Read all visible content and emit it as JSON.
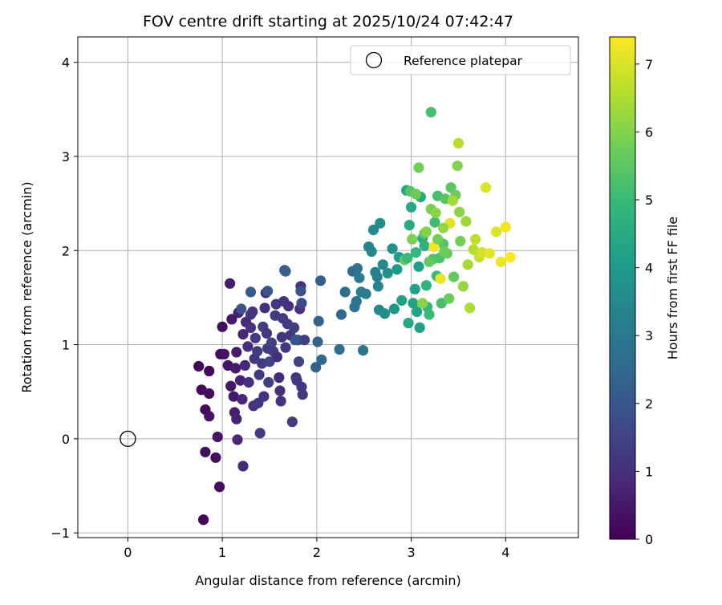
{
  "chart_data": {
    "type": "scatter",
    "title": "FOV centre drift starting at 2025/10/24 07:42:47",
    "xlabel": "Angular distance from reference (arcmin)",
    "ylabel": "Rotation from reference (arcmin)",
    "xlim": [
      -0.53,
      4.77
    ],
    "ylim": [
      -1.05,
      4.27
    ],
    "xticks": [
      "0",
      "1",
      "2",
      "3",
      "4"
    ],
    "xtick_values": [
      0,
      1,
      2,
      3,
      4
    ],
    "yticks": [
      "−1",
      "0",
      "1",
      "2",
      "3",
      "4"
    ],
    "ytick_values": [
      -1,
      0,
      1,
      2,
      3,
      4
    ],
    "grid": true,
    "legend": {
      "placement": "top-right",
      "entries": [
        {
          "label": "Reference platepar",
          "marker": "open-circle"
        }
      ]
    },
    "reference_point": {
      "x": 0,
      "y": 0
    },
    "colorbar": {
      "label": "Hours from first FF file",
      "colormap": "viridis",
      "range": [
        0,
        7.4
      ],
      "ticks": [
        "0",
        "1",
        "2",
        "3",
        "4",
        "5",
        "6",
        "7"
      ],
      "tick_values": [
        0,
        1,
        2,
        3,
        4,
        5,
        6,
        7
      ]
    },
    "points": [
      [
        0.75,
        0.77,
        0.1
      ],
      [
        0.78,
        0.52,
        0.15
      ],
      [
        0.82,
        0.31,
        0.2
      ],
      [
        0.82,
        -0.14,
        0.25
      ],
      [
        0.8,
        -0.86,
        0.1
      ],
      [
        0.86,
        0.72,
        0.2
      ],
      [
        0.86,
        0.48,
        0.3
      ],
      [
        0.86,
        0.24,
        0.35
      ],
      [
        0.93,
        -0.2,
        0.3
      ],
      [
        0.95,
        0.02,
        0.4
      ],
      [
        0.97,
        -0.51,
        0.3
      ],
      [
        0.98,
        0.9,
        0.25
      ],
      [
        1.0,
        1.19,
        0.3
      ],
      [
        1.02,
        0.9,
        0.35
      ],
      [
        1.06,
        0.78,
        0.4
      ],
      [
        1.09,
        0.56,
        0.45
      ],
      [
        1.1,
        1.27,
        0.5
      ],
      [
        1.08,
        1.65,
        0.6
      ],
      [
        1.12,
        0.45,
        0.5
      ],
      [
        1.13,
        0.28,
        0.6
      ],
      [
        1.15,
        0.21,
        0.7
      ],
      [
        1.16,
        -0.01,
        0.8
      ],
      [
        1.14,
        0.75,
        0.5
      ],
      [
        1.15,
        0.92,
        0.6
      ],
      [
        1.17,
        1.34,
        0.65
      ],
      [
        1.19,
        0.62,
        0.7
      ],
      [
        1.21,
        0.42,
        0.75
      ],
      [
        1.22,
        1.11,
        0.8
      ],
      [
        1.22,
        -0.29,
        0.9
      ],
      [
        1.24,
        0.78,
        0.85
      ],
      [
        1.25,
        1.24,
        0.9
      ],
      [
        1.27,
        0.98,
        0.95
      ],
      [
        1.28,
        0.6,
        1.0
      ],
      [
        1.3,
        1.18,
        1.05
      ],
      [
        1.3,
        1.32,
        1.1
      ],
      [
        1.32,
        1.35,
        1.15
      ],
      [
        1.33,
        0.35,
        1.0
      ],
      [
        1.34,
        0.85,
        1.2
      ],
      [
        1.35,
        1.07,
        1.25
      ],
      [
        1.37,
        0.93,
        1.3
      ],
      [
        1.38,
        0.38,
        1.2
      ],
      [
        1.39,
        0.68,
        1.25
      ],
      [
        1.4,
        0.06,
        1.3
      ],
      [
        1.42,
        0.8,
        1.35
      ],
      [
        1.43,
        1.19,
        1.4
      ],
      [
        1.44,
        0.45,
        1.1
      ],
      [
        1.45,
        1.39,
        1.0
      ],
      [
        1.46,
        1.55,
        0.9
      ],
      [
        1.47,
        1.12,
        1.2
      ],
      [
        1.48,
        0.96,
        1.3
      ],
      [
        1.49,
        0.6,
        1.4
      ],
      [
        1.5,
        0.82,
        1.5
      ],
      [
        1.52,
        1.02,
        1.45
      ],
      [
        1.54,
        0.93,
        1.35
      ],
      [
        1.56,
        1.31,
        1.3
      ],
      [
        1.57,
        1.43,
        1.2
      ],
      [
        1.58,
        0.87,
        1.0
      ],
      [
        1.6,
        0.65,
        0.9
      ],
      [
        1.61,
        0.51,
        1.0
      ],
      [
        1.62,
        0.4,
        1.1
      ],
      [
        1.63,
        1.08,
        1.2
      ],
      [
        1.64,
        1.28,
        1.3
      ],
      [
        1.65,
        1.46,
        1.1
      ],
      [
        1.66,
        1.79,
        1.5
      ],
      [
        1.67,
        0.97,
        1.2
      ],
      [
        1.69,
        1.22,
        1.3
      ],
      [
        1.7,
        1.41,
        1.0
      ],
      [
        1.72,
        1.1,
        1.2
      ],
      [
        1.74,
        0.18,
        1.3
      ],
      [
        1.76,
        1.18,
        1.4
      ],
      [
        1.78,
        0.65,
        1.1
      ],
      [
        1.79,
        0.62,
        1.2
      ],
      [
        1.8,
        1.05,
        1.3
      ],
      [
        1.81,
        0.82,
        1.5
      ],
      [
        1.82,
        1.38,
        1.1
      ],
      [
        1.83,
        1.62,
        1.0
      ],
      [
        1.84,
        0.55,
        1.2
      ],
      [
        1.85,
        0.47,
        1.3
      ],
      [
        1.87,
        1.05,
        1.4
      ],
      [
        1.48,
        1.57,
        2.0
      ],
      [
        1.3,
        1.56,
        2.1
      ],
      [
        1.2,
        1.38,
        1.9
      ],
      [
        1.67,
        1.78,
        2.3
      ],
      [
        1.77,
        1.05,
        2.0
      ],
      [
        1.83,
        1.57,
        1.9
      ],
      [
        1.84,
        1.44,
        1.7
      ],
      [
        1.99,
        0.76,
        2.3
      ],
      [
        2.01,
        1.03,
        2.4
      ],
      [
        2.02,
        1.25,
        2.3
      ],
      [
        2.04,
        1.68,
        2.2
      ],
      [
        2.05,
        0.84,
        2.5
      ],
      [
        2.24,
        0.95,
        2.6
      ],
      [
        2.26,
        1.32,
        2.5
      ],
      [
        2.3,
        1.56,
        2.7
      ],
      [
        2.38,
        1.78,
        2.6
      ],
      [
        2.4,
        1.4,
        2.8
      ],
      [
        2.42,
        1.46,
        2.9
      ],
      [
        2.43,
        1.81,
        2.8
      ],
      [
        2.45,
        1.71,
        3.0
      ],
      [
        2.47,
        1.56,
        3.1
      ],
      [
        2.49,
        0.94,
        2.9
      ],
      [
        2.52,
        1.54,
        3.2
      ],
      [
        2.55,
        2.04,
        3.3
      ],
      [
        2.58,
        1.99,
        3.4
      ],
      [
        2.6,
        2.22,
        3.5
      ],
      [
        2.62,
        1.77,
        3.3
      ],
      [
        2.64,
        1.72,
        3.2
      ],
      [
        2.65,
        1.62,
        3.4
      ],
      [
        2.66,
        1.37,
        3.5
      ],
      [
        2.67,
        2.29,
        3.6
      ],
      [
        2.7,
        1.85,
        3.5
      ],
      [
        2.72,
        1.33,
        3.6
      ],
      [
        2.75,
        1.76,
        3.7
      ],
      [
        2.8,
        2.02,
        3.8
      ],
      [
        2.82,
        1.38,
        3.9
      ],
      [
        2.85,
        1.8,
        4.0
      ],
      [
        2.87,
        1.93,
        4.1
      ],
      [
        2.9,
        1.47,
        4.2
      ],
      [
        2.95,
        2.64,
        4.3
      ],
      [
        2.97,
        1.23,
        4.4
      ],
      [
        2.98,
        2.27,
        4.5
      ],
      [
        3.0,
        2.46,
        4.4
      ],
      [
        3.02,
        1.44,
        4.3
      ],
      [
        3.04,
        1.59,
        4.2
      ],
      [
        3.06,
        1.35,
        4.3
      ],
      [
        3.08,
        1.83,
        4.1
      ],
      [
        3.09,
        1.18,
        4.2
      ],
      [
        3.1,
        2.57,
        4.5
      ],
      [
        3.12,
        2.13,
        4.6
      ],
      [
        3.14,
        2.05,
        4.7
      ],
      [
        3.16,
        1.63,
        4.8
      ],
      [
        3.17,
        1.4,
        4.9
      ],
      [
        3.19,
        1.32,
        5.0
      ],
      [
        3.21,
        3.47,
        5.2
      ],
      [
        3.23,
        1.91,
        5.3
      ],
      [
        3.25,
        2.3,
        5.1
      ],
      [
        3.27,
        1.73,
        5.0
      ],
      [
        3.28,
        2.58,
        5.2
      ],
      [
        3.3,
        1.92,
        5.3
      ],
      [
        3.32,
        1.44,
        5.2
      ],
      [
        3.34,
        2.07,
        5.4
      ],
      [
        3.36,
        2.55,
        5.5
      ],
      [
        3.38,
        1.97,
        5.6
      ],
      [
        3.4,
        1.49,
        5.7
      ],
      [
        3.42,
        2.67,
        5.5
      ],
      [
        3.45,
        1.72,
        5.6
      ],
      [
        3.47,
        2.59,
        5.7
      ],
      [
        3.49,
        2.9,
        6.0
      ],
      [
        3.51,
        2.41,
        6.1
      ],
      [
        3.52,
        2.1,
        5.8
      ],
      [
        3.55,
        1.62,
        6.2
      ],
      [
        3.58,
        2.31,
        6.3
      ],
      [
        3.6,
        1.85,
        6.4
      ],
      [
        3.62,
        1.39,
        6.5
      ],
      [
        3.66,
        2.01,
        6.6
      ],
      [
        3.68,
        2.12,
        6.7
      ],
      [
        3.72,
        1.93,
        6.8
      ],
      [
        3.75,
        1.98,
        6.9
      ],
      [
        3.79,
        2.67,
        7.0
      ],
      [
        3.83,
        1.97,
        7.1
      ],
      [
        3.9,
        2.2,
        7.0
      ],
      [
        3.95,
        1.88,
        7.2
      ],
      [
        4.0,
        2.25,
        7.3
      ],
      [
        4.05,
        1.93,
        7.4
      ],
      [
        3.5,
        3.14,
        6.6
      ],
      [
        3.31,
        1.7,
        7.2
      ],
      [
        3.24,
        2.04,
        7.3
      ],
      [
        3.41,
        2.29,
        7.1
      ],
      [
        3.08,
        2.88,
        5.8
      ],
      [
        2.99,
        2.63,
        5.4
      ],
      [
        3.14,
        2.18,
        5.5
      ],
      [
        3.21,
        2.44,
        5.9
      ],
      [
        2.93,
        1.9,
        5.6
      ],
      [
        3.05,
        2.6,
        5.7
      ],
      [
        3.26,
        2.4,
        6.1
      ],
      [
        3.16,
        2.2,
        6.0
      ],
      [
        3.44,
        2.53,
        6.4
      ],
      [
        3.34,
        2.24,
        6.2
      ],
      [
        3.12,
        1.44,
        6.1
      ],
      [
        3.01,
        2.12,
        5.9
      ],
      [
        3.28,
        2.12,
        5.8
      ],
      [
        3.35,
        1.99,
        5.7
      ],
      [
        3.19,
        1.88,
        5.6
      ],
      [
        3.05,
        1.98,
        4.9
      ],
      [
        2.96,
        1.92,
        5.0
      ]
    ]
  }
}
